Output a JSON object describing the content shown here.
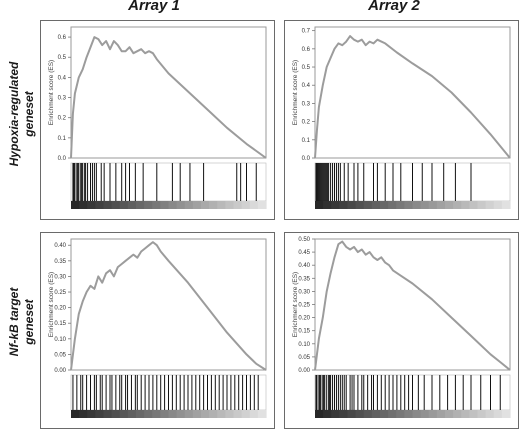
{
  "columns": [
    "Array 1",
    "Array 2"
  ],
  "rows": [
    {
      "line1": "Hypoxia-regulated",
      "line2": "geneset"
    },
    {
      "line1": "Nf-kB target",
      "line2": "geneset"
    }
  ],
  "chart_data": [
    {
      "type": "line",
      "title": "",
      "ylabel": "Enrichment score (ES)",
      "xlabel": "",
      "ylim": [
        0,
        0.65
      ],
      "yticks": [
        "0.0",
        "0.1",
        "0.2",
        "0.3",
        "0.4",
        "0.5",
        "0.6"
      ],
      "grid": false,
      "x": [
        0,
        0.01,
        0.02,
        0.04,
        0.06,
        0.08,
        0.1,
        0.12,
        0.14,
        0.16,
        0.18,
        0.2,
        0.22,
        0.24,
        0.26,
        0.28,
        0.3,
        0.32,
        0.34,
        0.36,
        0.38,
        0.4,
        0.42,
        0.44,
        0.5,
        0.6,
        0.7,
        0.8,
        0.9,
        1.0
      ],
      "y": [
        0.0,
        0.22,
        0.32,
        0.4,
        0.44,
        0.5,
        0.55,
        0.6,
        0.59,
        0.56,
        0.58,
        0.54,
        0.58,
        0.56,
        0.53,
        0.53,
        0.55,
        0.52,
        0.53,
        0.54,
        0.52,
        0.53,
        0.52,
        0.49,
        0.42,
        0.33,
        0.24,
        0.15,
        0.07,
        0.0
      ],
      "hits": [
        0.01,
        0.015,
        0.02,
        0.03,
        0.035,
        0.04,
        0.05,
        0.055,
        0.06,
        0.07,
        0.075,
        0.085,
        0.1,
        0.11,
        0.12,
        0.13,
        0.155,
        0.17,
        0.2,
        0.23,
        0.26,
        0.28,
        0.3,
        0.33,
        0.37,
        0.44,
        0.52,
        0.56,
        0.61,
        0.68,
        0.85,
        0.87,
        0.9,
        0.95
      ]
    },
    {
      "type": "line",
      "title": "",
      "ylabel": "Enrichment score (ES)",
      "xlabel": "",
      "ylim": [
        0,
        0.72
      ],
      "yticks": [
        "0.0",
        "0.1",
        "0.2",
        "0.3",
        "0.4",
        "0.5",
        "0.6",
        "0.7"
      ],
      "grid": false,
      "x": [
        0,
        0.01,
        0.02,
        0.04,
        0.06,
        0.08,
        0.1,
        0.12,
        0.14,
        0.16,
        0.18,
        0.2,
        0.22,
        0.24,
        0.26,
        0.28,
        0.3,
        0.32,
        0.36,
        0.42,
        0.5,
        0.6,
        0.7,
        0.8,
        0.9,
        1.0
      ],
      "y": [
        0.0,
        0.15,
        0.28,
        0.4,
        0.5,
        0.55,
        0.6,
        0.63,
        0.62,
        0.64,
        0.67,
        0.65,
        0.64,
        0.65,
        0.62,
        0.64,
        0.63,
        0.65,
        0.63,
        0.58,
        0.52,
        0.45,
        0.36,
        0.25,
        0.13,
        0.0
      ],
      "hits": [
        0.005,
        0.01,
        0.015,
        0.02,
        0.025,
        0.03,
        0.035,
        0.04,
        0.045,
        0.05,
        0.055,
        0.06,
        0.065,
        0.07,
        0.08,
        0.09,
        0.1,
        0.11,
        0.12,
        0.13,
        0.15,
        0.17,
        0.2,
        0.22,
        0.25,
        0.3,
        0.32,
        0.36,
        0.4,
        0.44,
        0.5,
        0.55,
        0.6,
        0.66,
        0.72,
        0.8
      ]
    },
    {
      "type": "line",
      "title": "",
      "ylabel": "Enrichment score (ES)",
      "xlabel": "",
      "ylim": [
        0,
        0.42
      ],
      "yticks": [
        "0.00",
        "0.05",
        "0.10",
        "0.15",
        "0.20",
        "0.25",
        "0.30",
        "0.35",
        "0.40"
      ],
      "grid": false,
      "x": [
        0,
        0.02,
        0.04,
        0.06,
        0.08,
        0.1,
        0.12,
        0.14,
        0.16,
        0.18,
        0.2,
        0.22,
        0.24,
        0.26,
        0.28,
        0.3,
        0.32,
        0.34,
        0.36,
        0.38,
        0.4,
        0.42,
        0.44,
        0.46,
        0.5,
        0.6,
        0.7,
        0.8,
        0.9,
        0.95,
        1.0
      ],
      "y": [
        0.0,
        0.1,
        0.18,
        0.22,
        0.25,
        0.27,
        0.26,
        0.3,
        0.28,
        0.31,
        0.32,
        0.3,
        0.33,
        0.34,
        0.35,
        0.36,
        0.37,
        0.36,
        0.38,
        0.39,
        0.4,
        0.41,
        0.4,
        0.38,
        0.35,
        0.28,
        0.2,
        0.12,
        0.05,
        0.02,
        0.0
      ],
      "hits": [
        0.01,
        0.03,
        0.05,
        0.06,
        0.08,
        0.1,
        0.12,
        0.13,
        0.15,
        0.16,
        0.18,
        0.2,
        0.21,
        0.23,
        0.25,
        0.26,
        0.28,
        0.29,
        0.31,
        0.33,
        0.34,
        0.36,
        0.38,
        0.4,
        0.42,
        0.44,
        0.46,
        0.48,
        0.5,
        0.52,
        0.54,
        0.56,
        0.58,
        0.6,
        0.62,
        0.64,
        0.66,
        0.68,
        0.7,
        0.72,
        0.74,
        0.76,
        0.78,
        0.8,
        0.82,
        0.84,
        0.86,
        0.88,
        0.9,
        0.92,
        0.94,
        0.96
      ]
    },
    {
      "type": "line",
      "title": "",
      "ylabel": "Enrichment score (ES)",
      "xlabel": "",
      "ylim": [
        0,
        0.5
      ],
      "yticks": [
        "0.00",
        "0.05",
        "0.10",
        "0.15",
        "0.20",
        "0.25",
        "0.30",
        "0.35",
        "0.40",
        "0.45",
        "0.50"
      ],
      "grid": false,
      "x": [
        0,
        0.02,
        0.04,
        0.06,
        0.08,
        0.1,
        0.12,
        0.14,
        0.16,
        0.18,
        0.2,
        0.22,
        0.24,
        0.26,
        0.28,
        0.3,
        0.32,
        0.34,
        0.36,
        0.38,
        0.4,
        0.44,
        0.5,
        0.6,
        0.7,
        0.8,
        0.9,
        0.95,
        1.0
      ],
      "y": [
        0.0,
        0.12,
        0.2,
        0.3,
        0.37,
        0.43,
        0.48,
        0.49,
        0.47,
        0.46,
        0.47,
        0.45,
        0.46,
        0.44,
        0.45,
        0.43,
        0.42,
        0.43,
        0.41,
        0.4,
        0.38,
        0.36,
        0.33,
        0.27,
        0.2,
        0.13,
        0.06,
        0.03,
        0.0
      ],
      "hits": [
        0.005,
        0.01,
        0.02,
        0.025,
        0.03,
        0.04,
        0.045,
        0.05,
        0.06,
        0.07,
        0.075,
        0.08,
        0.09,
        0.1,
        0.11,
        0.12,
        0.13,
        0.14,
        0.15,
        0.16,
        0.18,
        0.19,
        0.2,
        0.22,
        0.24,
        0.25,
        0.27,
        0.29,
        0.3,
        0.32,
        0.34,
        0.36,
        0.38,
        0.4,
        0.42,
        0.44,
        0.46,
        0.48,
        0.5,
        0.53,
        0.56,
        0.6,
        0.64,
        0.68,
        0.72,
        0.76,
        0.8,
        0.85,
        0.9,
        0.95
      ]
    }
  ]
}
